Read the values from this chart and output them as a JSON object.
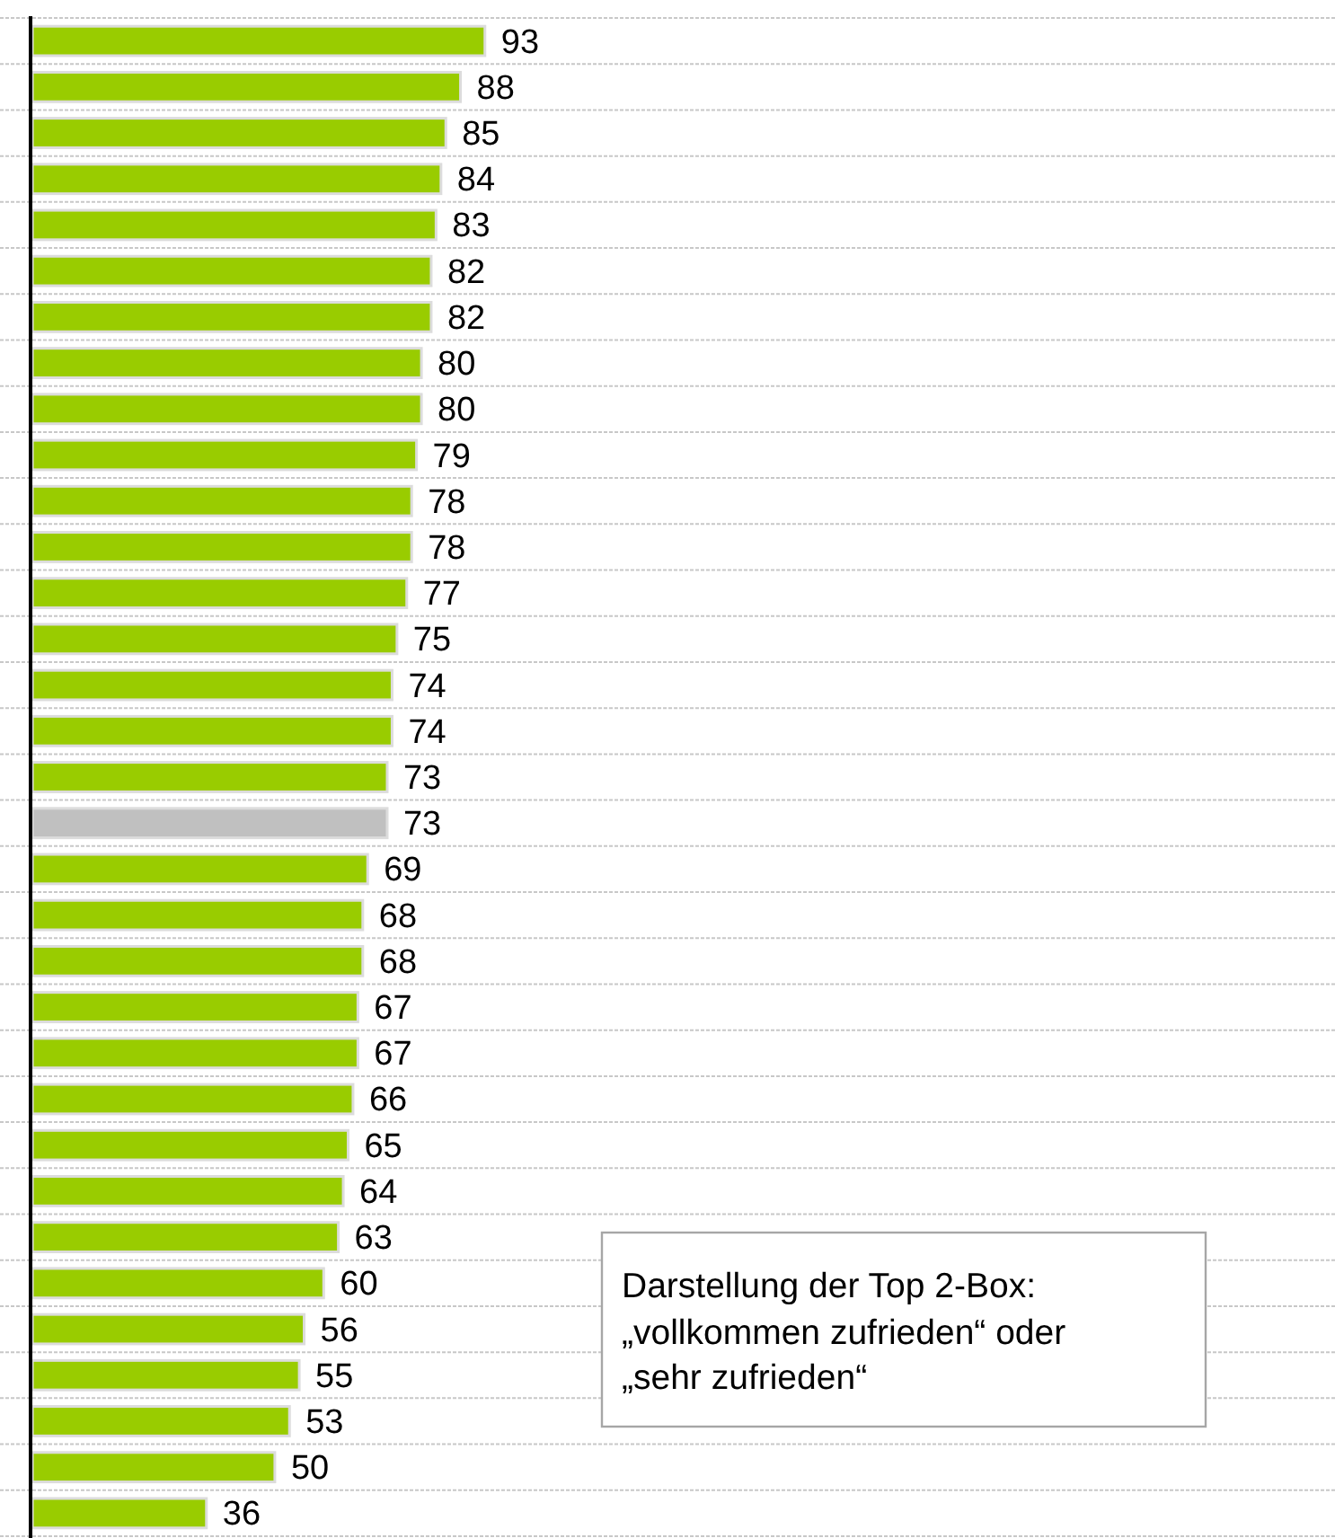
{
  "chart_data": {
    "type": "bar",
    "orientation": "horizontal",
    "categories": [
      null,
      null,
      null,
      null,
      null,
      null,
      null,
      null,
      null,
      null,
      null,
      null,
      null,
      null,
      null,
      null,
      null,
      null,
      null,
      null,
      null,
      null,
      null,
      null,
      null,
      null,
      null,
      null,
      null,
      null,
      null,
      null,
      null
    ],
    "values": [
      93,
      88,
      85,
      84,
      83,
      82,
      82,
      80,
      80,
      79,
      78,
      78,
      77,
      75,
      74,
      74,
      73,
      73,
      69,
      68,
      68,
      67,
      67,
      66,
      65,
      64,
      63,
      60,
      56,
      55,
      53,
      50,
      36
    ],
    "colors": [
      "#99cc00",
      "#99cc00",
      "#99cc00",
      "#99cc00",
      "#99cc00",
      "#99cc00",
      "#99cc00",
      "#99cc00",
      "#99cc00",
      "#99cc00",
      "#99cc00",
      "#99cc00",
      "#99cc00",
      "#99cc00",
      "#99cc00",
      "#99cc00",
      "#99cc00",
      "#c0c0c0",
      "#99cc00",
      "#99cc00",
      "#99cc00",
      "#99cc00",
      "#99cc00",
      "#99cc00",
      "#99cc00",
      "#99cc00",
      "#99cc00",
      "#99cc00",
      "#99cc00",
      "#99cc00",
      "#99cc00",
      "#99cc00",
      "#99cc00"
    ],
    "xlim": [
      0,
      267
    ],
    "data_labels": true,
    "grid": "y",
    "annotations": [
      "Darstellung der Top 2-Box: „vollkommen zufrieden“ oder „sehr zufrieden“"
    ]
  }
}
